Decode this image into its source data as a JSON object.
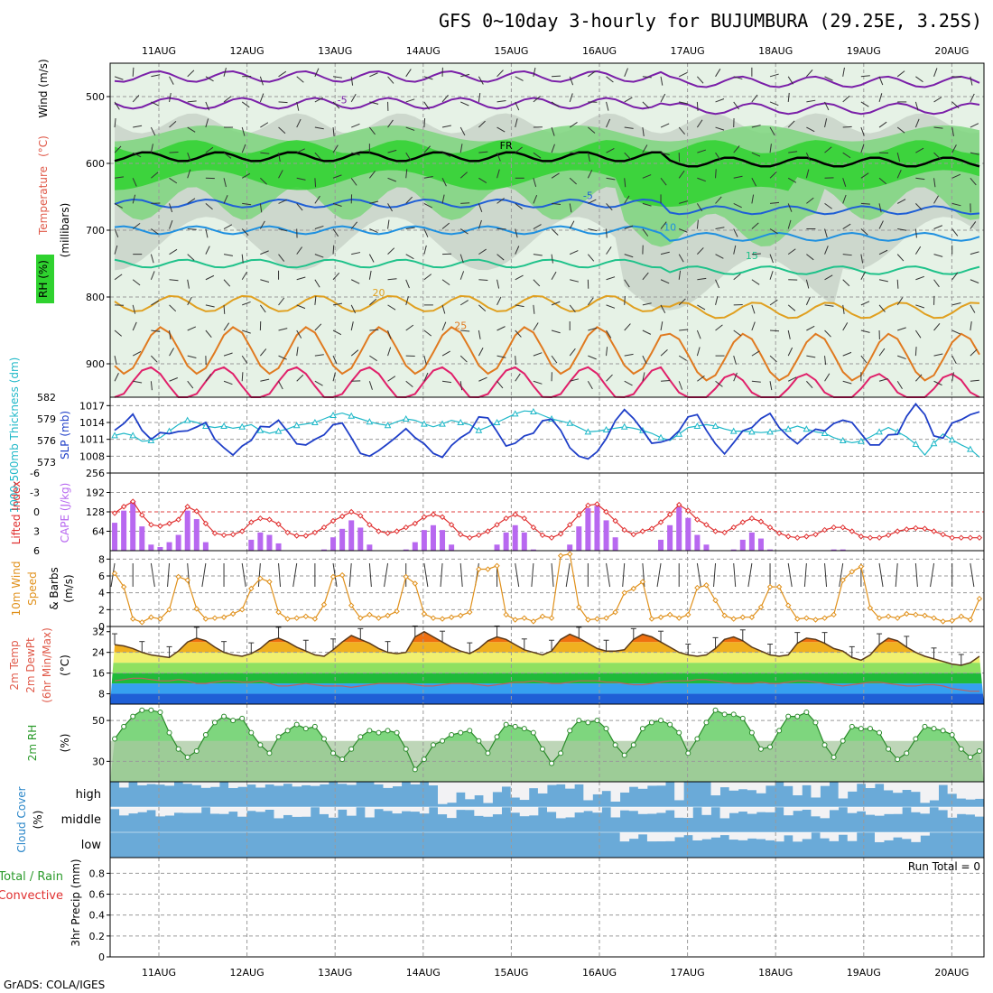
{
  "title": "GFS 0~10day 3-hourly for BUJUMBURA (29.25E, 3.25S)",
  "credit": "GrADS: COLA/IGES",
  "chart_data": {
    "type": "meteogram",
    "dates": [
      "11AUG",
      "12AUG",
      "13AUG",
      "14AUG",
      "15AUG",
      "16AUG",
      "17AUG",
      "18AUG",
      "19AUG",
      "20AUG"
    ],
    "panels": [
      {
        "id": "upper",
        "type": "contour",
        "ylabels": [
          "RH (%)",
          "Temperature",
          "(°C)",
          "Wind (m/s)",
          "(millibars)"
        ],
        "yticks": [
          500,
          600,
          700,
          800,
          900
        ],
        "temperature_contour_labels": [
          "-5",
          "FR",
          "10",
          "15",
          "20",
          "25"
        ],
        "rh_contour_labels": [
          "30",
          "50"
        ]
      },
      {
        "id": "slp",
        "type": "line",
        "ylabel_left": "1000-500mb Thickness (dm)",
        "ylabel_right": "SLP (mb)",
        "thickness_ticks": [
          573,
          576,
          579,
          582
        ],
        "slp_ticks": [
          1008,
          1011,
          1014,
          1017
        ]
      },
      {
        "id": "cape",
        "type": "bar+line",
        "ylabel_left": "Lifted Index",
        "ylabel_right": "CAPE (J/kg)",
        "li_ticks": [
          "-6",
          "-3",
          "0",
          "3",
          "6"
        ],
        "cape_ticks": [
          64,
          128,
          192,
          256
        ]
      },
      {
        "id": "wind",
        "type": "line",
        "ylabel": [
          "10m Wind",
          "Speed",
          "(m/s)",
          "& Barbs"
        ],
        "yticks": [
          0,
          2,
          4,
          6,
          8
        ]
      },
      {
        "id": "temp",
        "type": "area",
        "ylabel": [
          "2m Temp",
          "2m DewPt",
          "(6hr Min/Max)",
          "(°C)"
        ],
        "yticks": [
          8,
          16,
          24,
          32
        ]
      },
      {
        "id": "rh",
        "type": "area",
        "ylabel": [
          "2m RH",
          "(%)"
        ],
        "yticks": [
          30,
          50
        ]
      },
      {
        "id": "cloud",
        "type": "heatmap",
        "ylabel": [
          "Cloud Cover",
          "(%)"
        ],
        "levels": [
          "high",
          "middle",
          "low"
        ]
      },
      {
        "id": "precip",
        "type": "bar",
        "ylabel": [
          "Total / Rain",
          "Convective",
          "3hr Precip (mm)"
        ],
        "yticks": [
          0,
          0.2,
          0.4,
          0.6,
          0.8
        ],
        "run_total": "Run Total = 0"
      }
    ],
    "series": {
      "slp": [
        1012.6,
        1013.8,
        1015.5,
        1012.6,
        1011.0,
        1012.2,
        1012.0,
        1012.4,
        1012.5,
        1013.2,
        1014.0,
        1011.0,
        1009.5,
        1008.2,
        1009.8,
        1010.8,
        1013.3,
        1013.2,
        1014.4,
        1012.4,
        1010.2,
        1010.0,
        1011.0,
        1011.8,
        1013.6,
        1013.9,
        1011.3,
        1008.5,
        1008.0,
        1009.0,
        1010.2,
        1011.5,
        1012.9,
        1011.3,
        1010.2,
        1008.5,
        1007.8,
        1009.9,
        1011.3,
        1012.3,
        1015.0,
        1014.8,
        1012.4,
        1009.8,
        1010.3,
        1011.6,
        1012.1,
        1014.3,
        1014.6,
        1012.6,
        1009.5,
        1008.0,
        1007.5,
        1008.8,
        1011.1,
        1014.3,
        1016.3,
        1014.7,
        1012.6,
        1010.3,
        1010.5,
        1011.0,
        1012.5,
        1015.0,
        1015.4,
        1012.6,
        1010.2,
        1008.4,
        1010.4,
        1012.5,
        1013.1,
        1014.7,
        1015.6,
        1013.1,
        1011.5,
        1010.2,
        1011.7,
        1012.8,
        1012.5,
        1013.8,
        1014.4,
        1014.0,
        1012.0,
        1010.0,
        1010.0,
        1011.8,
        1011.9,
        1015.1,
        1017.3,
        1015.4,
        1011.6,
        1011.2,
        1013.9,
        1014.5,
        1015.4,
        1015.9
      ],
      "thickness": [
        576.7,
        577.0,
        576.7,
        575.9,
        576.0,
        576.4,
        577.3,
        578.2,
        578.8,
        578.5,
        578.0,
        577.8,
        578.0,
        577.7,
        577.9,
        578.2,
        577.4,
        577.0,
        577.3,
        577.6,
        578.1,
        578.3,
        578.5,
        579.0,
        579.5,
        579.8,
        579.4,
        579.0,
        578.6,
        578.3,
        578.1,
        578.6,
        579.0,
        578.8,
        578.3,
        577.9,
        578.3,
        578.8,
        578.5,
        578.2,
        577.4,
        577.9,
        578.5,
        579.1,
        579.7,
        580.1,
        580.0,
        579.5,
        579.0,
        578.7,
        578.4,
        577.8,
        577.2,
        577.3,
        577.5,
        577.7,
        577.9,
        577.7,
        577.4,
        577.0,
        576.4,
        576.0,
        576.9,
        577.8,
        578.0,
        578.2,
        578.0,
        577.6,
        577.3,
        577.3,
        577.2,
        577.1,
        577.2,
        577.4,
        577.6,
        578.0,
        577.6,
        577.2,
        577.0,
        576.4,
        576.0,
        575.7,
        575.9,
        576.5,
        577.2,
        577.8,
        577.2,
        576.5,
        575.5,
        574.0,
        575.6,
        576.9,
        576.1,
        575.4,
        574.8,
        573.7
      ],
      "lifted_index": [
        0.2,
        -0.8,
        -1.6,
        0.5,
        2.0,
        2.2,
        1.8,
        1.2,
        -0.8,
        -0.1,
        1.8,
        3.3,
        3.6,
        3.5,
        3.0,
        1.6,
        1.0,
        1.2,
        1.9,
        3.2,
        3.7,
        3.7,
        3.2,
        2.4,
        1.4,
        0.7,
        0.0,
        0.6,
        2.0,
        3.0,
        3.3,
        3.0,
        2.4,
        1.8,
        0.8,
        0.4,
        0.8,
        2.0,
        3.5,
        4.0,
        3.6,
        3.0,
        2.0,
        1.0,
        0.4,
        1.0,
        2.4,
        3.6,
        4.0,
        3.4,
        2.0,
        0.5,
        -1.0,
        -1.2,
        0.0,
        1.4,
        2.8,
        3.5,
        3.0,
        2.6,
        1.6,
        0.4,
        -1.1,
        -0.2,
        1.2,
        2.0,
        3.0,
        3.2,
        2.4,
        1.6,
        1.0,
        1.5,
        2.4,
        3.3,
        3.8,
        4.0,
        3.8,
        3.5,
        2.8,
        2.4,
        2.4,
        3.0,
        3.8,
        4.0,
        4.0,
        3.6,
        3.0,
        2.7,
        2.5,
        2.6,
        3.0,
        3.5,
        4.0,
        4.0,
        4.0,
        4.0
      ],
      "wind_speed": [
        6.3,
        4.7,
        0.9,
        0.5,
        1.1,
        0.9,
        2.0,
        5.9,
        5.5,
        2.1,
        0.9,
        1.0,
        1.1,
        1.5,
        2.0,
        4.5,
        5.7,
        5.3,
        1.7,
        0.9,
        1.0,
        1.2,
        0.9,
        2.6,
        5.9,
        6.1,
        2.5,
        1.0,
        1.4,
        1.0,
        1.3,
        1.8,
        5.9,
        5.1,
        1.5,
        1.0,
        0.9,
        1.1,
        1.3,
        1.7,
        6.8,
        6.8,
        7.2,
        1.4,
        0.8,
        1.0,
        0.6,
        1.2,
        1.0,
        8.4,
        8.6,
        2.3,
        0.8,
        0.9,
        1.0,
        1.7,
        4.0,
        4.5,
        5.3,
        0.9,
        1.1,
        1.4,
        1.0,
        1.4,
        4.6,
        4.9,
        3.1,
        1.3,
        0.9,
        1.1,
        1.1,
        2.3,
        4.7,
        4.7,
        2.5,
        0.9,
        1.0,
        0.8,
        1.0,
        1.4,
        5.5,
        6.5,
        7.1,
        2.2,
        1.0,
        1.2,
        1.0,
        1.5,
        1.4,
        1.3,
        1.0,
        0.6,
        0.7,
        1.2,
        0.8,
        3.3
      ],
      "temp_2m": [
        27.0,
        26.5,
        25.5,
        24.0,
        23.0,
        22.5,
        22.0,
        24.5,
        28.0,
        29.5,
        28.5,
        26.0,
        24.0,
        23.0,
        22.5,
        23.5,
        25.5,
        28.5,
        29.5,
        28.0,
        26.0,
        24.5,
        23.0,
        22.5,
        25.0,
        28.0,
        30.5,
        29.0,
        27.5,
        25.5,
        24.0,
        23.5,
        24.0,
        30.0,
        32.0,
        30.0,
        28.0,
        26.0,
        24.5,
        23.5,
        25.5,
        28.5,
        30.0,
        29.0,
        27.0,
        25.0,
        24.0,
        23.0,
        24.5,
        29.0,
        31.0,
        29.5,
        27.5,
        25.5,
        24.5,
        24.5,
        25.0,
        29.0,
        31.0,
        30.0,
        28.0,
        26.0,
        24.0,
        23.0,
        22.5,
        23.0,
        25.5,
        29.0,
        30.0,
        28.5,
        26.0,
        24.5,
        23.0,
        22.5,
        23.0,
        27.5,
        29.5,
        29.0,
        27.5,
        25.5,
        24.5,
        22.0,
        21.0,
        23.0,
        27.0,
        29.5,
        28.5,
        26.0,
        24.0,
        22.5,
        21.5,
        20.5,
        19.5,
        19.0,
        20.0,
        22.5
      ],
      "dewpt_2m": [
        13.0,
        13.5,
        14.0,
        14.0,
        13.5,
        13.0,
        13.0,
        13.5,
        13.0,
        12.0,
        12.0,
        12.5,
        13.0,
        13.0,
        12.5,
        12.5,
        13.0,
        12.0,
        11.0,
        11.0,
        11.5,
        12.0,
        11.5,
        11.0,
        11.0,
        11.0,
        10.5,
        11.0,
        11.5,
        12.0,
        12.0,
        12.0,
        12.0,
        11.5,
        11.0,
        11.0,
        11.5,
        12.0,
        12.0,
        12.0,
        11.5,
        11.0,
        11.5,
        12.0,
        12.5,
        12.5,
        13.0,
        12.5,
        12.0,
        12.0,
        12.5,
        13.0,
        13.0,
        13.0,
        12.5,
        12.5,
        12.0,
        11.5,
        11.5,
        12.0,
        12.5,
        13.0,
        13.0,
        13.0,
        13.5,
        13.5,
        13.0,
        12.5,
        12.0,
        12.0,
        12.0,
        12.5,
        12.0,
        12.0,
        12.5,
        13.0,
        13.0,
        12.5,
        12.0,
        11.5,
        11.0,
        11.5,
        12.0,
        12.5,
        12.5,
        12.0,
        11.5,
        11.0,
        11.0,
        11.5,
        11.5,
        11.0,
        10.0,
        9.5,
        9.0,
        9.0
      ],
      "rh_2m": [
        41,
        47,
        52,
        55,
        55,
        54,
        44,
        36,
        32,
        35,
        43,
        49,
        52,
        50,
        51,
        44,
        38,
        34,
        42,
        45,
        48,
        46,
        47,
        41,
        34,
        31,
        36,
        42,
        45,
        44,
        45,
        44,
        36,
        26,
        31,
        38,
        40,
        43,
        44,
        45,
        40,
        34,
        42,
        48,
        47,
        46,
        44,
        36,
        29,
        34,
        45,
        50,
        49,
        50,
        46,
        38,
        33,
        38,
        46,
        49,
        50,
        48,
        44,
        34,
        41,
        49,
        55,
        53,
        53,
        51,
        44,
        36,
        37,
        45,
        52,
        52,
        54,
        49,
        38,
        32,
        40,
        47,
        46,
        46,
        44,
        36,
        31,
        34,
        41,
        47,
        46,
        45,
        43,
        36,
        32,
        35
      ]
    }
  }
}
